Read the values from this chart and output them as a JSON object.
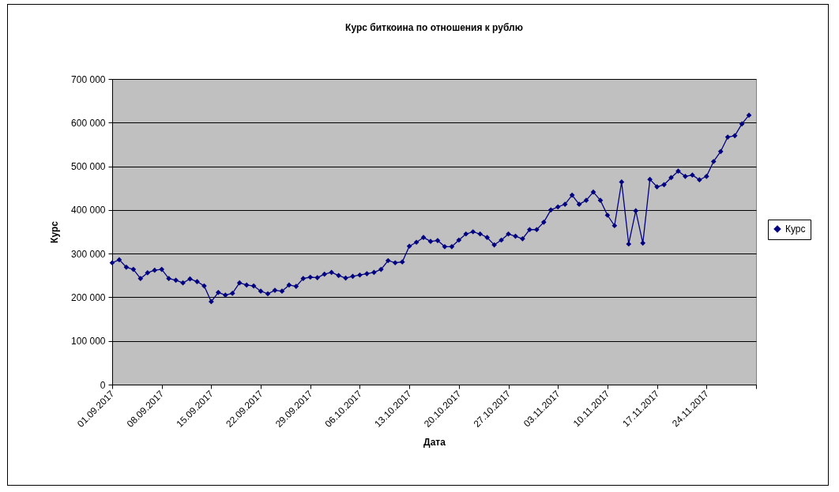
{
  "chart_data": {
    "type": "line",
    "title": "Курс биткоина по отношения к рублю",
    "xlabel": "Дата",
    "ylabel": "Курс",
    "x": [
      "2017-09-01",
      "2017-09-02",
      "2017-09-03",
      "2017-09-04",
      "2017-09-05",
      "2017-09-06",
      "2017-09-07",
      "2017-09-08",
      "2017-09-09",
      "2017-09-10",
      "2017-09-11",
      "2017-09-12",
      "2017-09-13",
      "2017-09-14",
      "2017-09-15",
      "2017-09-16",
      "2017-09-17",
      "2017-09-18",
      "2017-09-19",
      "2017-09-20",
      "2017-09-21",
      "2017-09-22",
      "2017-09-23",
      "2017-09-24",
      "2017-09-25",
      "2017-09-26",
      "2017-09-27",
      "2017-09-28",
      "2017-09-29",
      "2017-09-30",
      "2017-10-01",
      "2017-10-02",
      "2017-10-03",
      "2017-10-04",
      "2017-10-05",
      "2017-10-06",
      "2017-10-07",
      "2017-10-08",
      "2017-10-09",
      "2017-10-10",
      "2017-10-11",
      "2017-10-12",
      "2017-10-13",
      "2017-10-14",
      "2017-10-15",
      "2017-10-16",
      "2017-10-17",
      "2017-10-18",
      "2017-10-19",
      "2017-10-20",
      "2017-10-21",
      "2017-10-22",
      "2017-10-23",
      "2017-10-24",
      "2017-10-25",
      "2017-10-26",
      "2017-10-27",
      "2017-10-28",
      "2017-10-29",
      "2017-10-30",
      "2017-10-31",
      "2017-11-01",
      "2017-11-02",
      "2017-11-03",
      "2017-11-04",
      "2017-11-05",
      "2017-11-06",
      "2017-11-07",
      "2017-11-08",
      "2017-11-09",
      "2017-11-10",
      "2017-11-11",
      "2017-11-12",
      "2017-11-13",
      "2017-11-14",
      "2017-11-15",
      "2017-11-16",
      "2017-11-17",
      "2017-11-18",
      "2017-11-19",
      "2017-11-20",
      "2017-11-21",
      "2017-11-22",
      "2017-11-23",
      "2017-11-24",
      "2017-11-25",
      "2017-11-26",
      "2017-11-27",
      "2017-11-28",
      "2017-11-29",
      "2017-11-30"
    ],
    "series": [
      {
        "name": "Курс",
        "color": "#000080",
        "values": [
          279000,
          286000,
          269000,
          264000,
          243000,
          256000,
          262000,
          264000,
          243000,
          239000,
          233000,
          242000,
          236000,
          226000,
          190000,
          211000,
          205000,
          209000,
          233000,
          228000,
          226000,
          214000,
          208000,
          216000,
          214000,
          228000,
          225000,
          243000,
          246000,
          245000,
          253000,
          257000,
          250000,
          244000,
          248000,
          251000,
          254000,
          257000,
          264000,
          284000,
          279000,
          281000,
          317000,
          326000,
          337000,
          328000,
          330000,
          316000,
          316000,
          331000,
          345000,
          350000,
          345000,
          337000,
          320000,
          331000,
          345000,
          340000,
          334000,
          355000,
          355000,
          372000,
          400000,
          407000,
          413000,
          434000,
          413000,
          422000,
          441000,
          422000,
          388000,
          364000,
          464000,
          322000,
          398000,
          324000,
          470000,
          453000,
          458000,
          474000,
          489000,
          477000,
          480000,
          469000,
          477000,
          511000,
          534000,
          567000,
          570000,
          597000,
          617000
        ]
      }
    ],
    "xlim": [
      "2017-09-01",
      "2017-12-01"
    ],
    "xticks": [
      {
        "value": "2017-09-01",
        "label": "01.09.2017"
      },
      {
        "value": "2017-09-08",
        "label": "08.09.2017"
      },
      {
        "value": "2017-09-15",
        "label": "15.09.2017"
      },
      {
        "value": "2017-09-22",
        "label": "22.09.2017"
      },
      {
        "value": "2017-09-29",
        "label": "29.09.2017"
      },
      {
        "value": "2017-10-06",
        "label": "06.10.2017"
      },
      {
        "value": "2017-10-13",
        "label": "13.10.2017"
      },
      {
        "value": "2017-10-20",
        "label": "20.10.2017"
      },
      {
        "value": "2017-10-27",
        "label": "27.10.2017"
      },
      {
        "value": "2017-11-03",
        "label": "03.11.2017"
      },
      {
        "value": "2017-11-10",
        "label": "10.11.2017"
      },
      {
        "value": "2017-11-17",
        "label": "17.11.2017"
      },
      {
        "value": "2017-11-24",
        "label": "24.11.2017"
      },
      {
        "value": "2017-12-01",
        "label": null
      }
    ],
    "ylim": [
      0,
      700000
    ],
    "yticks": [
      {
        "value": 0,
        "label": "0"
      },
      {
        "value": 100000,
        "label": "100 000"
      },
      {
        "value": 200000,
        "label": "200 000"
      },
      {
        "value": 300000,
        "label": "300 000"
      },
      {
        "value": 400000,
        "label": "400 000"
      },
      {
        "value": 500000,
        "label": "500 000"
      },
      {
        "value": 600000,
        "label": "600 000"
      },
      {
        "value": 700000,
        "label": "700 000"
      }
    ],
    "grid": "y",
    "legend": "right",
    "marker": "diamond"
  }
}
